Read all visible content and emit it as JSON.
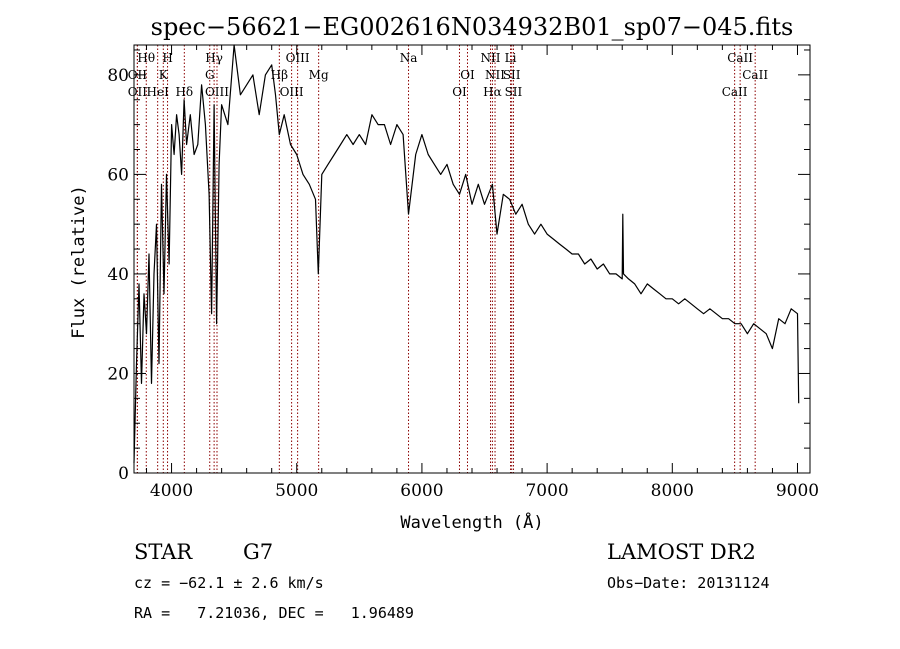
{
  "chart_data": {
    "type": "line",
    "title": "spec−56621−EG002616N034932B01_sp07−045.fits",
    "xlabel": "Wavelength (Å)",
    "ylabel": "Flux (relative)",
    "xlim": [
      3700,
      9100
    ],
    "ylim": [
      0,
      86
    ],
    "x_ticks": [
      4000,
      5000,
      6000,
      7000,
      8000,
      9000
    ],
    "y_ticks": [
      0,
      20,
      40,
      60,
      80
    ],
    "line_color": "#000000",
    "marker_color": "#8b0000",
    "series": [
      {
        "x": [
          3700,
          3720,
          3740,
          3760,
          3780,
          3800,
          3820,
          3840,
          3860,
          3880,
          3900,
          3920,
          3940,
          3960,
          3980,
          4000,
          4020,
          4040,
          4060,
          4080,
          4100,
          4120,
          4150,
          4180,
          4210,
          4240,
          4270,
          4300,
          4320,
          4340,
          4360,
          4380,
          4400,
          4450,
          4500,
          4550,
          4600,
          4650,
          4700,
          4750,
          4800,
          4830,
          4861,
          4900,
          4950,
          5000,
          5050,
          5100,
          5150,
          5172,
          5200,
          5250,
          5300,
          5350,
          5400,
          5450,
          5500,
          5550,
          5600,
          5650,
          5700,
          5750,
          5800,
          5850,
          5893,
          5950,
          6000,
          6050,
          6100,
          6150,
          6200,
          6250,
          6300,
          6350,
          6400,
          6450,
          6500,
          6563,
          6600,
          6650,
          6700,
          6750,
          6800,
          6850,
          6900,
          6950,
          7000,
          7050,
          7100,
          7150,
          7200,
          7250,
          7300,
          7350,
          7400,
          7450,
          7500,
          7550,
          7600,
          7605,
          7610,
          7650,
          7700,
          7750,
          7800,
          7850,
          7900,
          7950,
          8000,
          8050,
          8100,
          8150,
          8200,
          8250,
          8300,
          8350,
          8400,
          8450,
          8500,
          8550,
          8600,
          8650,
          8700,
          8750,
          8800,
          8850,
          8900,
          8950,
          9000,
          9010
        ],
        "y": [
          2,
          22,
          38,
          18,
          36,
          28,
          44,
          18,
          40,
          50,
          22,
          58,
          36,
          60,
          42,
          70,
          64,
          72,
          68,
          60,
          75,
          66,
          72,
          64,
          66,
          78,
          70,
          56,
          32,
          74,
          30,
          62,
          74,
          70,
          86,
          76,
          78,
          80,
          72,
          80,
          82,
          76,
          68,
          72,
          66,
          64,
          60,
          58,
          55,
          40,
          60,
          62,
          64,
          66,
          68,
          66,
          68,
          66,
          72,
          70,
          70,
          66,
          70,
          68,
          52,
          64,
          68,
          64,
          62,
          60,
          62,
          58,
          56,
          60,
          54,
          58,
          54,
          58,
          48,
          56,
          55,
          52,
          54,
          50,
          48,
          50,
          48,
          47,
          46,
          45,
          44,
          44,
          42,
          43,
          41,
          42,
          40,
          40,
          39,
          52,
          40,
          39,
          38,
          36,
          38,
          37,
          36,
          35,
          35,
          34,
          35,
          34,
          33,
          32,
          33,
          32,
          31,
          31,
          30,
          30,
          28,
          30,
          29,
          28,
          25,
          31,
          30,
          33,
          32,
          14
        ]
      }
    ],
    "line_markers": [
      {
        "label": "Hθ",
        "x": 3798,
        "row": 0
      },
      {
        "label": "OII",
        "x": 3727,
        "row": 1
      },
      {
        "label": "OII",
        "x": 3727,
        "row": 2
      },
      {
        "label": "H",
        "x": 3968,
        "row": 0
      },
      {
        "label": "K",
        "x": 3934,
        "row": 1
      },
      {
        "label": "HeI",
        "x": 3889,
        "row": 2
      },
      {
        "label": "Hδ",
        "x": 4102,
        "row": 2
      },
      {
        "label": "Hγ",
        "x": 4340,
        "row": 0
      },
      {
        "label": "G",
        "x": 4305,
        "row": 1
      },
      {
        "label": "OIII",
        "x": 4363,
        "row": 2
      },
      {
        "label": "OIII",
        "x": 5007,
        "row": 0
      },
      {
        "label": "Hβ",
        "x": 4861,
        "row": 1
      },
      {
        "label": "OIII",
        "x": 4959,
        "row": 2
      },
      {
        "label": "Mg",
        "x": 5175,
        "row": 1
      },
      {
        "label": "Na",
        "x": 5893,
        "row": 0
      },
      {
        "label": "OI",
        "x": 6300,
        "row": 2
      },
      {
        "label": "OI",
        "x": 6364,
        "row": 1
      },
      {
        "label": "NII",
        "x": 6548,
        "row": 0
      },
      {
        "label": "NII",
        "x": 6584,
        "row": 1
      },
      {
        "label": "Hα",
        "x": 6563,
        "row": 2
      },
      {
        "label": "Li",
        "x": 6708,
        "row": 0
      },
      {
        "label": "SII",
        "x": 6717,
        "row": 1
      },
      {
        "label": "SII",
        "x": 6731,
        "row": 2
      },
      {
        "label": "CaII",
        "x": 8542,
        "row": 0
      },
      {
        "label": "CaII",
        "x": 8662,
        "row": 1
      },
      {
        "label": "CaII",
        "x": 8498,
        "row": 2
      }
    ]
  },
  "footer": {
    "object_class": "STAR",
    "subclass": "G7",
    "survey": "LAMOST DR2",
    "redshift": "cz = −62.1 ± 2.6 km/s",
    "obs_date": "Obs−Date: 20131124",
    "coords": "RA =   7.21036, DEC =   1.96489"
  }
}
